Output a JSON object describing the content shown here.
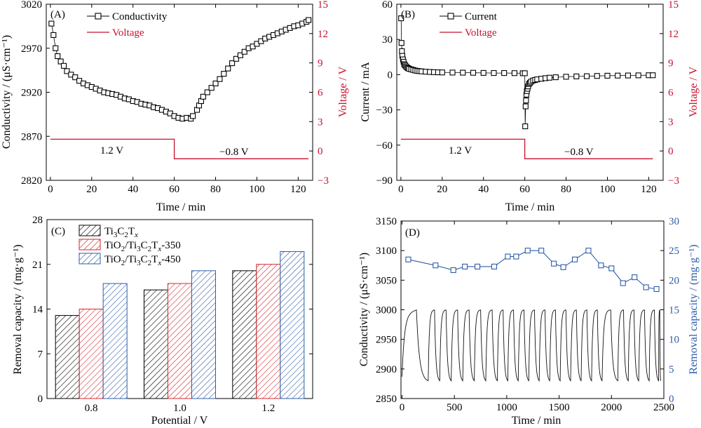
{
  "chart_data": [
    {
      "panel_label": "(A)",
      "type": "line",
      "xlabel": "Time / min",
      "ylabel": "Conductivity / (μS·cm⁻¹)",
      "y2label": "Voltage / V",
      "xlim": [
        -2,
        127
      ],
      "ylim": [
        2820,
        3020
      ],
      "y2lim": [
        -3,
        15
      ],
      "xticks": [
        "0",
        "20",
        "40",
        "60",
        "80",
        "100",
        "120"
      ],
      "yticks": [
        "2820",
        "2870",
        "2920",
        "2970",
        "3020"
      ],
      "y2ticks": [
        "-3",
        "0",
        "3",
        "6",
        "9",
        "12",
        "15"
      ],
      "legend": [
        "Conductivity",
        "Voltage"
      ],
      "legend_position": "top-left",
      "annotations": [
        "1.2 V",
        "−0.8 V"
      ],
      "series": [
        {
          "name": "Conductivity",
          "axis": "left",
          "marker": "open-square",
          "x": [
            0.5,
            1.5,
            2.5,
            3.5,
            5,
            6.5,
            8,
            10,
            12,
            14,
            16,
            18,
            20,
            22,
            24,
            26,
            28,
            30,
            32,
            34,
            36,
            38,
            40,
            42,
            44,
            46,
            48,
            50,
            52,
            54,
            56,
            58,
            60,
            62,
            64,
            66,
            68,
            69,
            71,
            72,
            73,
            74,
            76,
            78,
            80,
            82,
            84,
            86,
            88,
            90,
            92,
            94,
            96,
            98,
            100,
            102,
            104,
            106,
            108,
            110,
            112,
            114,
            116,
            118,
            120,
            122,
            124,
            125
          ],
          "y": [
            2998,
            2985,
            2970,
            2961,
            2955,
            2950,
            2944,
            2940,
            2937,
            2933,
            2930,
            2928,
            2926,
            2924,
            2922,
            2920,
            2919,
            2918,
            2917,
            2915,
            2913,
            2912,
            2910,
            2909,
            2907,
            2906,
            2905,
            2903,
            2902,
            2900,
            2898,
            2896,
            2893,
            2891,
            2890,
            2891,
            2890,
            2893,
            2900,
            2905,
            2910,
            2915,
            2920,
            2925,
            2930,
            2935,
            2941,
            2947,
            2953,
            2958,
            2962,
            2966,
            2970,
            2972,
            2975,
            2978,
            2981,
            2983,
            2985,
            2987,
            2989,
            2991,
            2993,
            2995,
            2996,
            2998,
            3000,
            3002
          ]
        },
        {
          "name": "Voltage",
          "axis": "right",
          "color": "#c8102e",
          "x": [
            0,
            60,
            60,
            125
          ],
          "y": [
            1.2,
            1.2,
            -0.8,
            -0.8
          ]
        }
      ]
    },
    {
      "panel_label": "(B)",
      "type": "line",
      "xlabel": "Time / min",
      "ylabel": "Current / mA",
      "y2label": "Voltage / V",
      "xlim": [
        -2,
        127
      ],
      "ylim": [
        -90,
        60
      ],
      "y2lim": [
        -3,
        15
      ],
      "xticks": [
        "0",
        "20",
        "40",
        "60",
        "80",
        "100",
        "120"
      ],
      "yticks": [
        "-90",
        "-60",
        "-30",
        "0",
        "30",
        "60"
      ],
      "y2ticks": [
        "-3",
        "0",
        "3",
        "6",
        "9",
        "12",
        "15"
      ],
      "legend": [
        "Current",
        "Voltage"
      ],
      "legend_position": "top-left",
      "annotations": [
        "1.2 V",
        "−0.8 V"
      ],
      "series": [
        {
          "name": "Current",
          "axis": "left",
          "marker": "open-square",
          "x": [
            0.1,
            0.3,
            0.5,
            0.7,
            1,
            1.3,
            1.6,
            2,
            2.5,
            3,
            3.5,
            4,
            5,
            6,
            7,
            8,
            9,
            10,
            12,
            14,
            16,
            18,
            20,
            25,
            30,
            35,
            40,
            45,
            50,
            55,
            59,
            60,
            60.2,
            60.4,
            60.6,
            60.8,
            61,
            61.3,
            61.6,
            62,
            62.5,
            63,
            64,
            65,
            66,
            68,
            70,
            72,
            75,
            80,
            85,
            90,
            95,
            100,
            105,
            110,
            115,
            120,
            122
          ],
          "y": [
            48,
            27,
            20,
            16,
            13,
            11,
            9,
            8,
            7,
            6,
            5.5,
            5,
            4.5,
            4,
            3.5,
            3.2,
            3,
            2.8,
            2.5,
            2.3,
            2.1,
            2,
            1.9,
            1.8,
            1.7,
            1.6,
            1.5,
            1.4,
            1.4,
            1.3,
            1.2,
            1.2,
            -44,
            -27,
            -22,
            -17,
            -14,
            -12,
            -10,
            -8,
            -7,
            -6,
            -5,
            -4.5,
            -4,
            -3.5,
            -3,
            -2.6,
            -2.2,
            -1.8,
            -1.5,
            -1.3,
            -1.1,
            -0.9,
            -0.8,
            -0.7,
            -0.6,
            -0.5,
            -0.5
          ]
        },
        {
          "name": "Voltage",
          "axis": "right",
          "color": "#c8102e",
          "x": [
            0,
            60,
            60,
            122
          ],
          "y": [
            1.2,
            1.2,
            -0.8,
            -0.8
          ]
        }
      ]
    },
    {
      "panel_label": "(C)",
      "type": "bar",
      "xlabel": "Potential / V",
      "ylabel": "Removal capacity / (mg·g⁻¹)",
      "categories": [
        "0.8",
        "1.0",
        "1.2"
      ],
      "ylim": [
        0,
        28
      ],
      "yticks": [
        "0",
        "7",
        "14",
        "21",
        "28"
      ],
      "legend_position": "top-left",
      "series": [
        {
          "name": "Ti₃C₂Tₓ",
          "name_main": "Ti",
          "name_parts": [
            "Ti",
            "3",
            "C",
            "2",
            "T",
            "x",
            ""
          ],
          "color": "#000000",
          "values": [
            13,
            17,
            20
          ]
        },
        {
          "name": "TiO₂/Ti₃C₂Tₓ-350",
          "name_parts": [
            "TiO",
            "2",
            "/Ti",
            "3",
            "C",
            "2",
            "T",
            "x",
            "-350"
          ],
          "color": "#d6272e",
          "values": [
            14,
            18,
            21
          ]
        },
        {
          "name": "TiO₂/Ti₃C₂Tₓ-450",
          "name_parts": [
            "TiO",
            "2",
            "/Ti",
            "3",
            "C",
            "2",
            "T",
            "x",
            "-450"
          ],
          "color": "#2e5da8",
          "values": [
            18,
            20,
            23
          ]
        }
      ]
    },
    {
      "panel_label": "(D)",
      "type": "line",
      "xlabel": "Time / min",
      "ylabel": "Conductivity / (μS·cm⁻¹)",
      "y2label": "Removal capacity / (mg·g⁻¹)",
      "xlim": [
        -10,
        2500
      ],
      "ylim": [
        2850,
        3150
      ],
      "y2lim": [
        0,
        30
      ],
      "xticks": [
        "0",
        "500",
        "1000",
        "1500",
        "2000",
        "2500"
      ],
      "yticks": [
        "2850",
        "2900",
        "2950",
        "3000",
        "3050",
        "3100",
        "3150"
      ],
      "y2ticks": [
        "0",
        "5",
        "10",
        "15",
        "20",
        "25",
        "30"
      ],
      "cycles": {
        "starts": [
          0,
          250,
          360,
          470,
          580,
          690,
          800,
          910,
          1010,
          1110,
          1210,
          1310,
          1410,
          1510,
          1610,
          1710,
          1810,
          1910,
          2060,
          2160,
          2260,
          2360,
          2450
        ],
        "min": 2880,
        "max": 3000
      },
      "series": [
        {
          "name": "Removal capacity",
          "axis": "right",
          "color": "#2e5da8",
          "marker": "open-square",
          "x": [
            60,
            320,
            490,
            600,
            720,
            880,
            1010,
            1090,
            1200,
            1330,
            1450,
            1540,
            1650,
            1780,
            1900,
            2000,
            2110,
            2220,
            2330,
            2430
          ],
          "y": [
            23.5,
            22.5,
            21.7,
            22.3,
            22.3,
            22.3,
            24.0,
            24.0,
            25.0,
            25.0,
            22.8,
            22.2,
            23.5,
            25.0,
            22.5,
            22.0,
            19.5,
            20.5,
            18.8,
            18.5
          ]
        }
      ]
    }
  ]
}
